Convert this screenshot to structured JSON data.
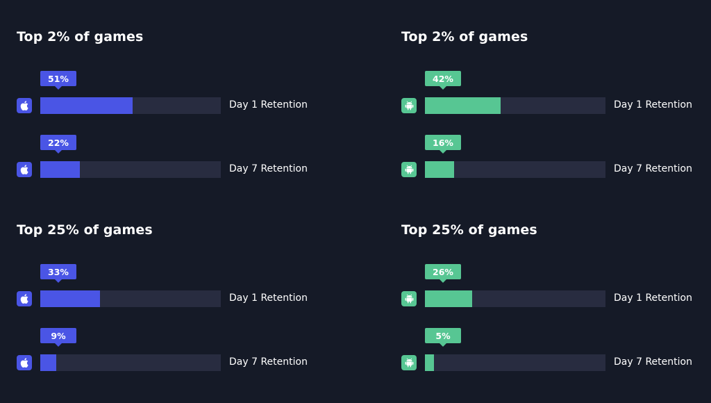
{
  "colors": {
    "ios": "#4a55e5",
    "android": "#57c693",
    "track": "#282c40",
    "background": "#151a27"
  },
  "chart_data": [
    {
      "type": "bar",
      "title": "Top 2% of games",
      "platform_icon": "apple-icon",
      "categories": [
        "Day 1 Retention",
        "Day 7 Retention"
      ],
      "values": [
        51,
        22
      ],
      "labels": [
        "51%",
        "22%"
      ],
      "ylim": [
        0,
        100
      ]
    },
    {
      "type": "bar",
      "title": "Top 2% of games",
      "platform_icon": "android-icon",
      "categories": [
        "Day 1 Retention",
        "Day 7 Retention"
      ],
      "values": [
        42,
        16
      ],
      "labels": [
        "42%",
        "16%"
      ],
      "ylim": [
        0,
        100
      ]
    },
    {
      "type": "bar",
      "title": "Top 25% of games",
      "platform_icon": "apple-icon",
      "categories": [
        "Day 1 Retention",
        "Day 7 Retention"
      ],
      "values": [
        33,
        9
      ],
      "labels": [
        "33%",
        "9%"
      ],
      "ylim": [
        0,
        100
      ]
    },
    {
      "type": "bar",
      "title": "Top 25% of games",
      "platform_icon": "android-icon",
      "categories": [
        "Day 1 Retention",
        "Day 7 Retention"
      ],
      "values": [
        26,
        5
      ],
      "labels": [
        "26%",
        "5%"
      ],
      "ylim": [
        0,
        100
      ]
    }
  ]
}
